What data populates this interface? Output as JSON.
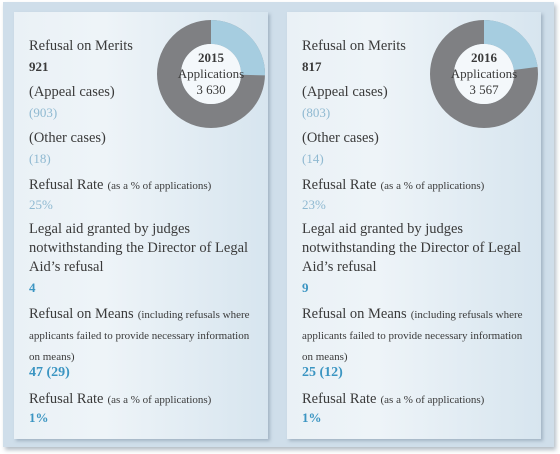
{
  "colors": {
    "frame_bg": "#cfdeea",
    "accent_light": "#8fb9d1",
    "accent_blue": "#3b95c2",
    "donut_grey": "#7f8083",
    "donut_blue": "#a6cde0",
    "text": "#3a3a3a"
  },
  "panels": [
    {
      "year": "2015",
      "applications_label": "Applications",
      "applications": "3 630",
      "refusal_share": 0.254,
      "merits_label": "Refusal on Merits",
      "merits_value": "921",
      "appeal_label": "(Appeal cases)",
      "appeal_value": "(903)",
      "other_label": "(Other cases)",
      "other_value": "(18)",
      "rate1_label": "Refusal Rate",
      "rate1_note": "(as a % of applications)",
      "rate1_value": "25%",
      "judges_label": "Legal aid granted by judges notwithstanding the Director of Legal Aid’s refusal",
      "judges_value": "4",
      "means_label": "Refusal on Means",
      "means_note": "(including refusals where applicants failed to provide necessary information on means)",
      "means_value": "47 (29)",
      "rate2_label": "Refusal Rate",
      "rate2_note": "(as a % of applications)",
      "rate2_value": "1%"
    },
    {
      "year": "2016",
      "applications_label": "Applications",
      "applications": "3 567",
      "refusal_share": 0.229,
      "merits_label": "Refusal on Merits",
      "merits_value": "817",
      "appeal_label": "(Appeal cases)",
      "appeal_value": "(803)",
      "other_label": "(Other cases)",
      "other_value": "(14)",
      "rate1_label": "Refusal Rate",
      "rate1_note": "(as a % of applications)",
      "rate1_value": "23%",
      "judges_label": "Legal aid granted by judges notwithstanding the Director of Legal Aid’s refusal",
      "judges_value": "9",
      "means_label": "Refusal on Means",
      "means_note": "(including refusals where applicants failed to provide necessary information on means)",
      "means_value": "25 (12)",
      "rate2_label": "Refusal Rate",
      "rate2_note": "(as a % of applications)",
      "rate2_value": "1%"
    }
  ]
}
